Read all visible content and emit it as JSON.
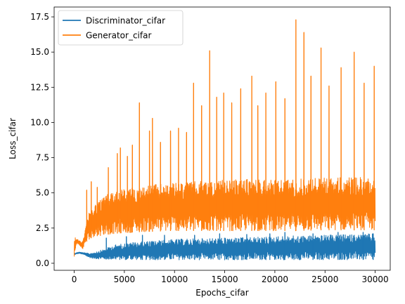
{
  "chart_data": {
    "type": "line",
    "title": "",
    "xlabel": "Epochs_cifar",
    "ylabel": "Loss_cifar",
    "xlim": [
      -2000,
      31500
    ],
    "ylim": [
      -0.5,
      18.2
    ],
    "x_ticks": [
      0,
      5000,
      10000,
      15000,
      20000,
      25000,
      30000
    ],
    "x_tick_labels": [
      "0",
      "5000",
      "10000",
      "15000",
      "20000",
      "25000",
      "30000"
    ],
    "y_ticks": [
      0.0,
      2.5,
      5.0,
      7.5,
      10.0,
      12.5,
      15.0,
      17.5
    ],
    "y_tick_labels": [
      "0.0",
      "2.5",
      "5.0",
      "7.5",
      "10.0",
      "12.5",
      "15.0",
      "17.5"
    ],
    "grid": false,
    "legend_position": "top-left",
    "x_range": [
      0,
      30000
    ],
    "series": [
      {
        "name": "Discriminator_cifar",
        "color": "#1f77b4",
        "envelope": {
          "x": [
            0,
            200,
            500,
            1000,
            1500,
            2000,
            3000,
            4000,
            6000,
            8000,
            10000,
            12000,
            15000,
            18000,
            20000,
            22000,
            25000,
            28000,
            30000
          ],
          "low": [
            0.6,
            0.65,
            0.7,
            0.6,
            0.4,
            0.32,
            0.28,
            0.25,
            0.24,
            0.24,
            0.24,
            0.24,
            0.24,
            0.24,
            0.24,
            0.24,
            0.24,
            0.24,
            0.24
          ],
          "high": [
            0.7,
            0.75,
            0.8,
            0.75,
            0.7,
            0.8,
            1.0,
            1.3,
            1.5,
            1.6,
            1.7,
            1.75,
            1.8,
            1.85,
            1.9,
            1.95,
            2.0,
            2.05,
            2.1
          ]
        },
        "peaks": [
          {
            "x": 3200,
            "y": 1.8
          },
          {
            "x": 5200,
            "y": 1.9
          },
          {
            "x": 6800,
            "y": 2.0
          },
          {
            "x": 9000,
            "y": 2.0
          },
          {
            "x": 12000,
            "y": 2.0
          },
          {
            "x": 14500,
            "y": 2.1
          },
          {
            "x": 17200,
            "y": 2.05
          },
          {
            "x": 19500,
            "y": 2.1
          },
          {
            "x": 21000,
            "y": 2.2
          },
          {
            "x": 23800,
            "y": 2.1
          },
          {
            "x": 26300,
            "y": 2.2
          },
          {
            "x": 28800,
            "y": 2.2
          },
          {
            "x": 29800,
            "y": 2.1
          }
        ]
      },
      {
        "name": "Generator_cifar",
        "color": "#ff7f0e",
        "envelope": {
          "x": [
            0,
            200,
            500,
            800,
            1000,
            1200,
            1500,
            2000,
            3000,
            4000,
            6000,
            8000,
            10000,
            12000,
            15000,
            18000,
            20000,
            22000,
            25000,
            28000,
            30000
          ],
          "low": [
            0.3,
            1.4,
            1.3,
            1.0,
            1.1,
            1.5,
            1.7,
            1.9,
            2.0,
            2.1,
            2.2,
            2.25,
            2.3,
            2.3,
            2.3,
            2.3,
            2.3,
            2.3,
            2.35,
            2.35,
            2.35
          ],
          "high": [
            2.0,
            1.8,
            1.6,
            1.5,
            2.2,
            3.0,
            3.6,
            4.2,
            4.8,
            5.2,
            5.4,
            5.6,
            5.7,
            5.8,
            5.9,
            6.0,
            6.0,
            6.0,
            6.1,
            6.1,
            6.1
          ]
        },
        "peaks": [
          {
            "x": 1250,
            "y": 5.2
          },
          {
            "x": 1700,
            "y": 5.8
          },
          {
            "x": 2300,
            "y": 5.4
          },
          {
            "x": 3400,
            "y": 6.8
          },
          {
            "x": 4300,
            "y": 7.8
          },
          {
            "x": 4600,
            "y": 8.2
          },
          {
            "x": 5300,
            "y": 7.6
          },
          {
            "x": 5800,
            "y": 8.4
          },
          {
            "x": 6500,
            "y": 11.4
          },
          {
            "x": 7500,
            "y": 9.4
          },
          {
            "x": 7800,
            "y": 10.3
          },
          {
            "x": 8600,
            "y": 8.6
          },
          {
            "x": 9600,
            "y": 9.4
          },
          {
            "x": 10400,
            "y": 9.6
          },
          {
            "x": 11200,
            "y": 9.3
          },
          {
            "x": 11900,
            "y": 12.8
          },
          {
            "x": 12700,
            "y": 11.2
          },
          {
            "x": 13500,
            "y": 15.1
          },
          {
            "x": 14200,
            "y": 11.8
          },
          {
            "x": 14900,
            "y": 12.1
          },
          {
            "x": 15700,
            "y": 11.4
          },
          {
            "x": 16600,
            "y": 12.4
          },
          {
            "x": 17700,
            "y": 13.3
          },
          {
            "x": 18300,
            "y": 11.2
          },
          {
            "x": 19100,
            "y": 12.1
          },
          {
            "x": 20100,
            "y": 12.9
          },
          {
            "x": 21000,
            "y": 11.7
          },
          {
            "x": 22100,
            "y": 17.3
          },
          {
            "x": 22900,
            "y": 16.4
          },
          {
            "x": 23600,
            "y": 13.3
          },
          {
            "x": 24600,
            "y": 15.3
          },
          {
            "x": 25400,
            "y": 12.6
          },
          {
            "x": 26600,
            "y": 13.9
          },
          {
            "x": 27900,
            "y": 15.0
          },
          {
            "x": 28900,
            "y": 12.8
          },
          {
            "x": 29900,
            "y": 14.0
          }
        ]
      }
    ]
  }
}
